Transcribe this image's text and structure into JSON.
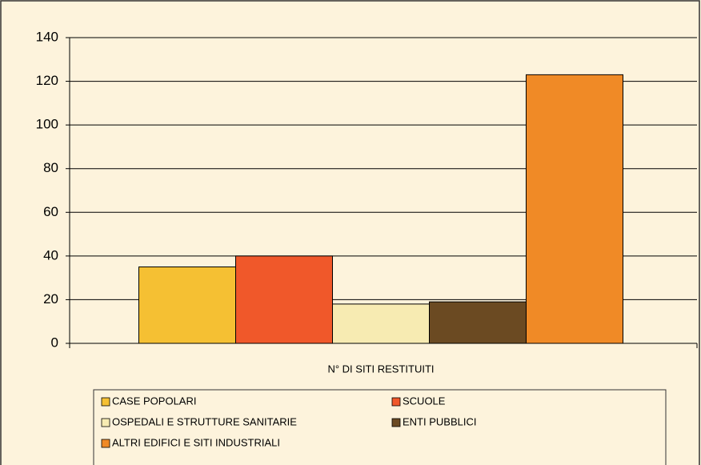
{
  "chart_data": {
    "type": "bar",
    "categories": [
      "N° DI SITI RESTITUITI"
    ],
    "series": [
      {
        "name": "CASE POPOLARI",
        "color": "#f5c033",
        "values": [
          35
        ]
      },
      {
        "name": "SCUOLE",
        "color": "#f0582a",
        "values": [
          40
        ]
      },
      {
        "name": "OSPEDALI E STRUTTURE SANITARIE",
        "color": "#f7ebb2",
        "values": [
          18
        ]
      },
      {
        "name": "ENTI PUBBLICI",
        "color": "#6b4a22",
        "values": [
          19
        ]
      },
      {
        "name": "ALTRI EDIFICI E SITI INDUSTRIALI",
        "color": "#f08a26",
        "values": [
          123
        ]
      }
    ],
    "ylim": [
      0,
      140
    ],
    "yticks": [
      0,
      20,
      40,
      60,
      80,
      100,
      120,
      140
    ],
    "grid": true
  }
}
